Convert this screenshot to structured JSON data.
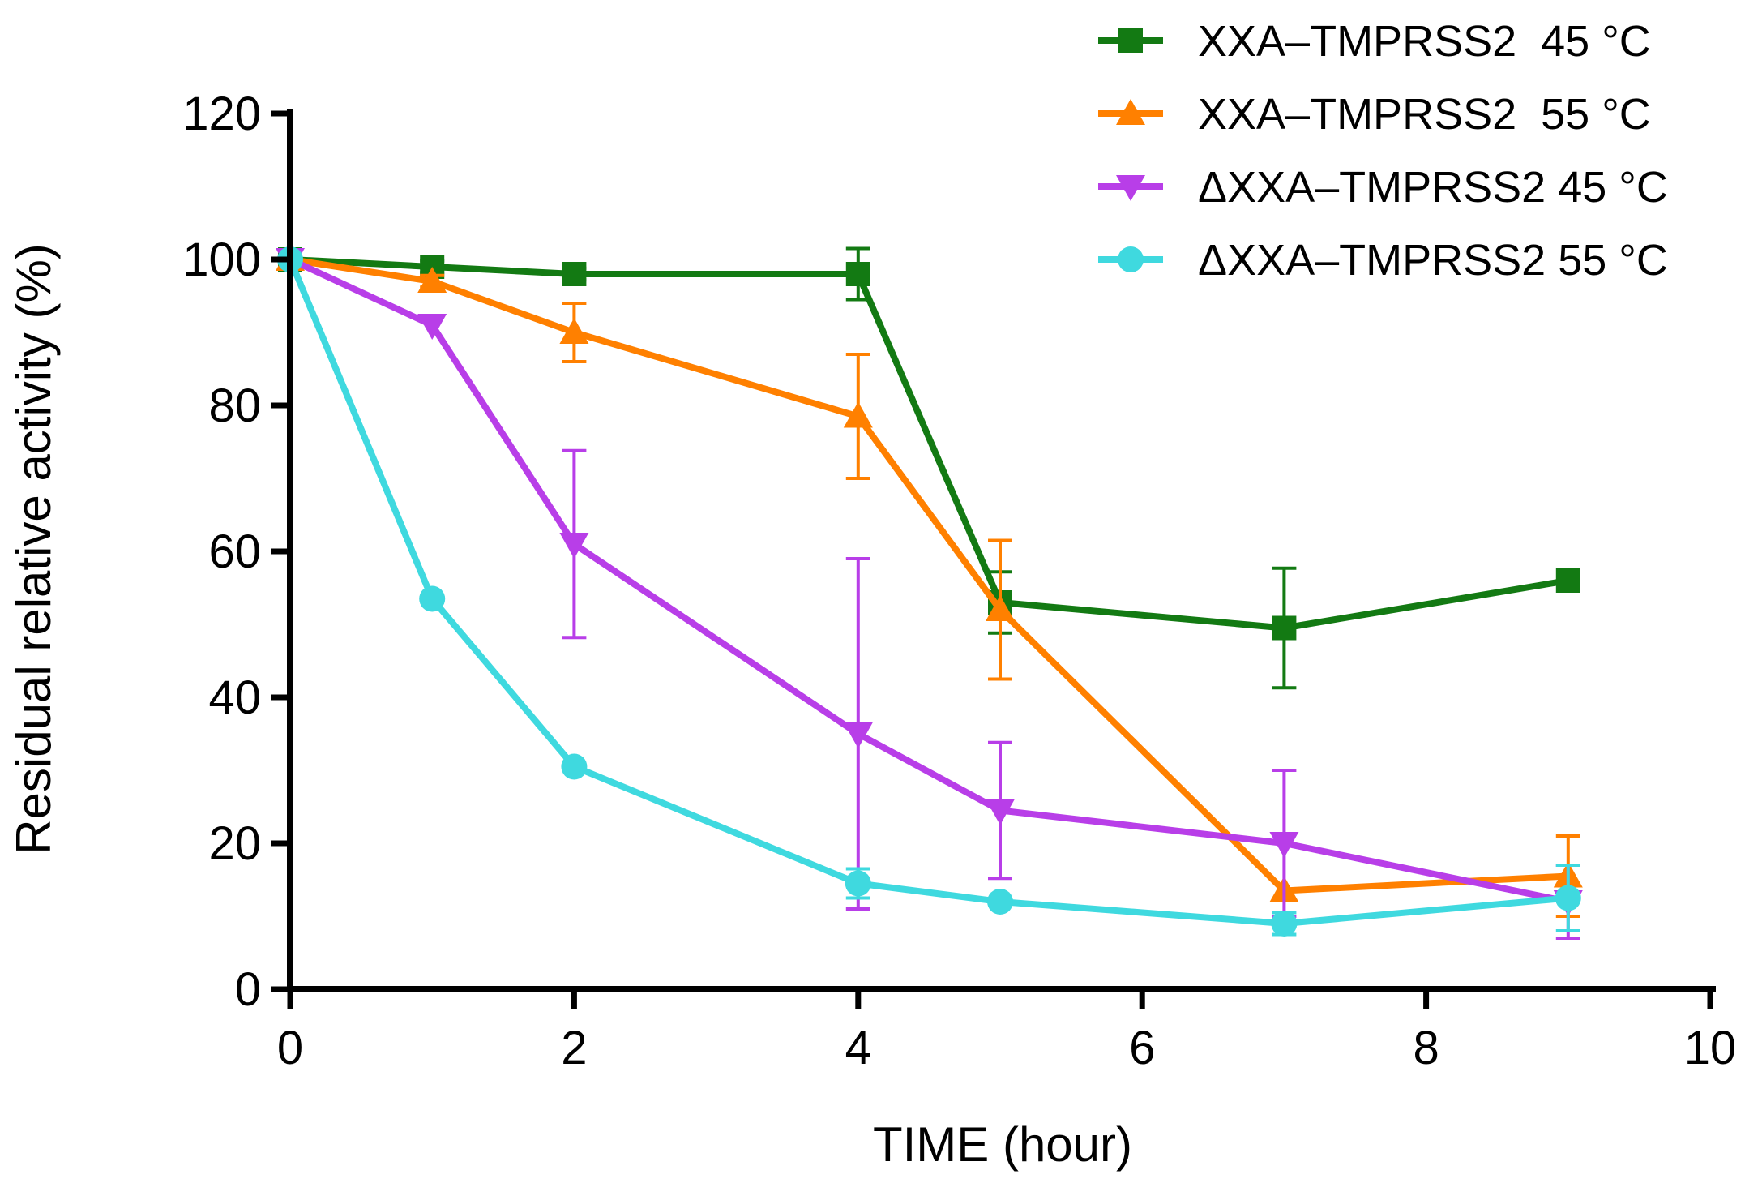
{
  "chart_data": {
    "type": "line",
    "title": "",
    "xlabel": "TIME (hour)",
    "ylabel": "Residual relative activity (%)",
    "xlim": [
      0,
      10
    ],
    "ylim": [
      0,
      120
    ],
    "xticks": [
      0,
      2,
      4,
      6,
      8,
      10
    ],
    "yticks": [
      0,
      20,
      40,
      60,
      80,
      100,
      120
    ],
    "grid": false,
    "legend_position": "top-right",
    "series": [
      {
        "name": "XXA–TMPRSS2  45 °C",
        "color": "#137a13",
        "marker": "square",
        "x": [
          0,
          1,
          2,
          4,
          5,
          7,
          9
        ],
        "y": [
          100,
          99,
          98,
          98,
          53,
          49.5,
          56
        ],
        "err": [
          0,
          0.8,
          0.8,
          3.5,
          4.2,
          8.2,
          0
        ]
      },
      {
        "name": "XXA–TMPRSS2  55 °C",
        "color": "#ff8000",
        "marker": "triangle-up",
        "x": [
          0,
          1,
          2,
          4,
          5,
          7,
          9
        ],
        "y": [
          100,
          97,
          90,
          78.5,
          52,
          13.5,
          15.5
        ],
        "err": [
          0,
          0.8,
          4,
          8.5,
          9.5,
          0,
          5.5
        ]
      },
      {
        "name": "ΔXXA–TMPRSS2 45 °C",
        "color": "#b83ee8",
        "marker": "triangle-down",
        "x": [
          0,
          1,
          2,
          4,
          5,
          7,
          9
        ],
        "y": [
          100,
          91,
          61,
          35,
          24.5,
          20,
          12
        ],
        "err": [
          0,
          0,
          12.8,
          24,
          9.3,
          10,
          5
        ]
      },
      {
        "name": "ΔXXA–TMPRSS2 55 °C",
        "color": "#3fd9df",
        "marker": "circle",
        "x": [
          0,
          1,
          2,
          4,
          5,
          7,
          9
        ],
        "y": [
          100,
          53.5,
          30.5,
          14.5,
          12,
          9,
          12.5
        ],
        "err": [
          0,
          0,
          0,
          2,
          0,
          1.5,
          4.5
        ]
      }
    ]
  }
}
